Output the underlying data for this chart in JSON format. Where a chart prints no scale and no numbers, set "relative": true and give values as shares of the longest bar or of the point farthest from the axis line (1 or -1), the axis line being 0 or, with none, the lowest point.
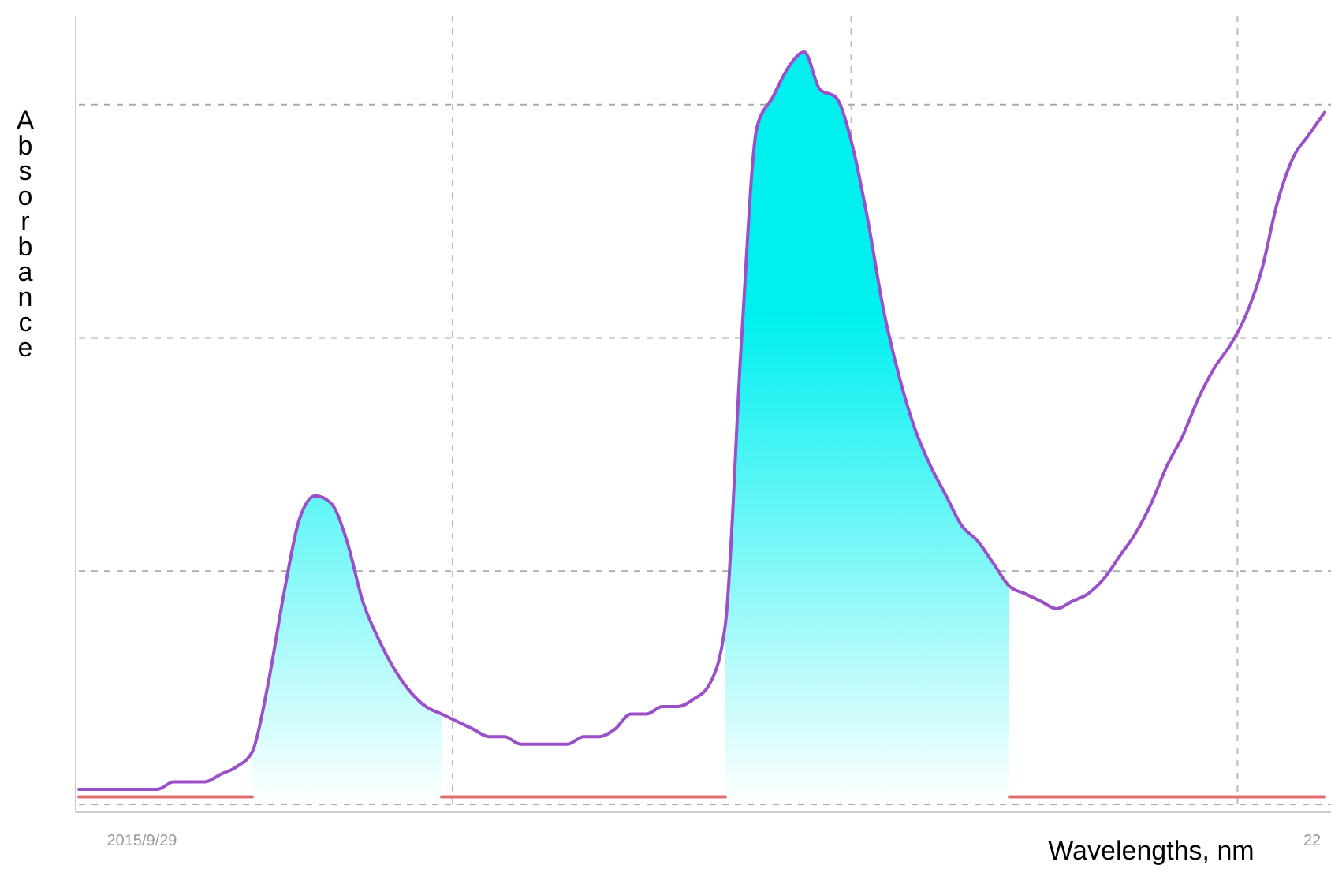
{
  "chart_data": {
    "type": "line",
    "relative": true,
    "xlabel": "Wavelengths, nm",
    "ylabel": "Absorbance",
    "grid": true,
    "marker": "none",
    "line_style": "solid",
    "annotations": [
      "2015/9/29",
      "22"
    ],
    "categories": [
      null,
      null,
      null,
      null,
      null,
      null,
      null,
      null,
      null,
      null,
      null,
      null,
      null,
      null,
      null,
      null,
      null,
      null,
      null,
      null,
      null,
      null,
      null,
      null,
      null,
      null,
      null,
      null,
      null,
      null,
      null,
      null,
      null,
      null,
      null,
      null,
      null,
      null,
      null,
      null,
      null,
      null,
      null,
      null,
      null,
      null,
      null,
      null,
      null,
      null,
      null,
      null,
      null,
      null,
      null,
      null,
      null,
      null,
      null,
      null,
      null,
      null,
      null,
      null,
      null,
      null,
      null,
      null,
      null,
      null,
      null,
      null,
      null,
      null,
      null,
      null,
      null,
      null,
      null,
      null
    ],
    "series": [
      {
        "type": "area",
        "color": "#00f0f0",
        "values": [
          null,
          null,
          null,
          null,
          null,
          null,
          null,
          null,
          null,
          null,
          null,
          0.07,
          0.16,
          0.28,
          0.38,
          0.41,
          0.4,
          0.35,
          0.27,
          0.22,
          0.18,
          0.15,
          0.13,
          0.12,
          null,
          null,
          null,
          null,
          null,
          null,
          null,
          null,
          null,
          null,
          null,
          null,
          null,
          null,
          null,
          null,
          null,
          0.24,
          0.61,
          0.9,
          0.94,
          0.98,
          1,
          0.95,
          0.94,
          0.88,
          0.78,
          0.66,
          0.57,
          0.5,
          0.45,
          0.41,
          0.37,
          0.35,
          0.32,
          0.29,
          null,
          null,
          null,
          null,
          null,
          null,
          null,
          null,
          null,
          null,
          null,
          null,
          null,
          null,
          null,
          null,
          null,
          null,
          null,
          null
        ]
      },
      {
        "color": "#e07070",
        "values": [
          0.01,
          0.01,
          0.01,
          0.01,
          0.01,
          0.01,
          0.01,
          0.01,
          0.01,
          0.01,
          0.01,
          0.01,
          null,
          null,
          null,
          null,
          null,
          null,
          null,
          null,
          null,
          null,
          null,
          0.01,
          0.01,
          0.01,
          0.01,
          0.01,
          0.01,
          0.01,
          0.01,
          0.01,
          0.01,
          0.01,
          0.01,
          0.01,
          0.01,
          0.01,
          0.01,
          0.01,
          0.01,
          0.01,
          null,
          null,
          null,
          null,
          null,
          null,
          null,
          null,
          null,
          null,
          null,
          null,
          null,
          null,
          null,
          null,
          null,
          0.01,
          0.01,
          0.01,
          0.01,
          0.01,
          0.01,
          0.01,
          0.01,
          0.01,
          0.01,
          0.01,
          0.01,
          0.01,
          0.01,
          0.01,
          0.01,
          0.01,
          0.01,
          0.01,
          0.01,
          0.01
        ]
      },
      {
        "color": "#9b4fc8",
        "values": [
          0.02,
          0.02,
          0.02,
          0.02,
          0.02,
          0.02,
          0.03,
          0.03,
          0.03,
          0.04,
          0.05,
          0.07,
          0.16,
          0.28,
          0.38,
          0.41,
          0.4,
          0.35,
          0.27,
          0.22,
          0.18,
          0.15,
          0.13,
          0.12,
          0.11,
          0.1,
          0.09,
          0.09,
          0.08,
          0.08,
          0.08,
          0.08,
          0.09,
          0.09,
          0.1,
          0.12,
          0.12,
          0.13,
          0.13,
          0.14,
          0.16,
          0.24,
          0.61,
          0.9,
          0.94,
          0.98,
          1,
          0.95,
          0.94,
          0.88,
          0.78,
          0.66,
          0.57,
          0.5,
          0.45,
          0.41,
          0.37,
          0.35,
          0.32,
          0.29,
          0.28,
          0.27,
          0.26,
          0.27,
          0.28,
          0.3,
          0.33,
          0.36,
          0.4,
          0.45,
          0.49,
          0.54,
          0.58,
          0.61,
          0.65,
          0.71,
          0.8,
          0.86,
          0.89,
          0.92
        ]
      }
    ]
  }
}
